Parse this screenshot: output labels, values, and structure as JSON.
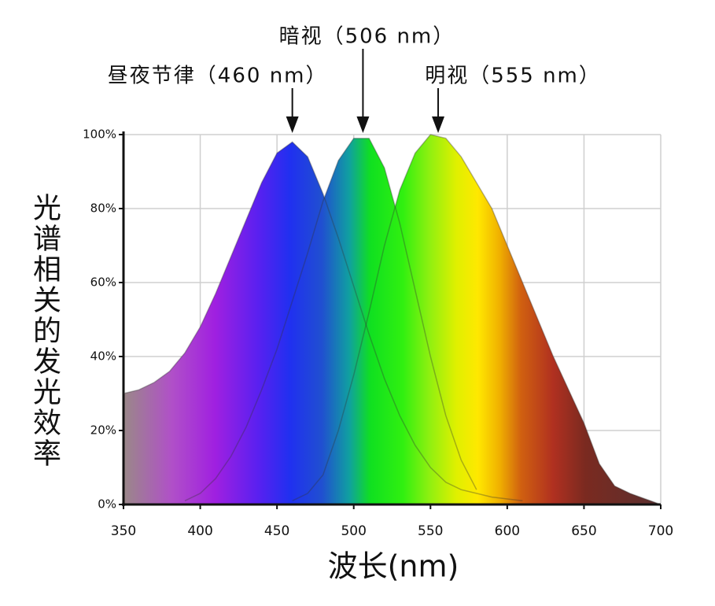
{
  "chart_data": {
    "type": "area",
    "x_label": "波长(nm)",
    "y_label": "光谱相关的发光效率",
    "x": [
      350,
      360,
      370,
      380,
      390,
      400,
      410,
      420,
      430,
      440,
      450,
      460,
      470,
      480,
      490,
      500,
      510,
      520,
      530,
      540,
      550,
      560,
      570,
      580,
      590,
      600,
      610,
      620,
      630,
      640,
      650,
      660,
      670,
      680,
      690,
      700
    ],
    "series": [
      {
        "name": "昼夜节律",
        "color": "#333333",
        "values": [
          30,
          31,
          33,
          36,
          41,
          48,
          57,
          67,
          77,
          87,
          95,
          98,
          94,
          84,
          72,
          59,
          46,
          34,
          24,
          16,
          10,
          6,
          4,
          3,
          2,
          1.5,
          1,
          null,
          null,
          null,
          null,
          null,
          null,
          null,
          null,
          null
        ]
      },
      {
        "name": "暗视",
        "color": "#333333",
        "values": [
          null,
          null,
          null,
          null,
          1,
          3,
          7,
          13,
          21,
          31,
          42,
          55,
          68,
          82,
          93,
          99,
          99,
          91,
          76,
          58,
          40,
          24,
          12,
          4,
          null,
          null,
          null,
          null,
          null,
          null,
          null,
          null,
          null,
          null,
          null,
          null
        ]
      },
      {
        "name": "明视",
        "color": "#333333",
        "values": [
          null,
          null,
          null,
          null,
          null,
          null,
          null,
          null,
          null,
          null,
          null,
          1,
          3,
          8,
          20,
          35,
          52,
          70,
          85,
          95,
          100,
          99,
          94,
          87,
          80,
          70,
          60,
          50,
          40,
          31,
          22,
          11,
          5,
          3,
          1.5,
          0
        ]
      }
    ],
    "annotations": [
      {
        "text": "昼夜节律（460 nm）",
        "x": 460
      },
      {
        "text": "暗视（506 nm）",
        "x": 506
      },
      {
        "text": "明视（555 nm）",
        "x": 555
      }
    ],
    "xlim": [
      350,
      700
    ],
    "xticks": [
      350,
      400,
      450,
      500,
      550,
      600,
      650,
      700
    ],
    "ylim": [
      0,
      100
    ],
    "yticks": [
      {
        "value": 0,
        "label": "0%"
      },
      {
        "value": 20,
        "label": "20%"
      },
      {
        "value": 40,
        "label": "40%"
      },
      {
        "value": 60,
        "label": "60%"
      },
      {
        "value": 80,
        "label": "80%"
      },
      {
        "value": 100,
        "label": "100%"
      }
    ],
    "grid": true
  }
}
